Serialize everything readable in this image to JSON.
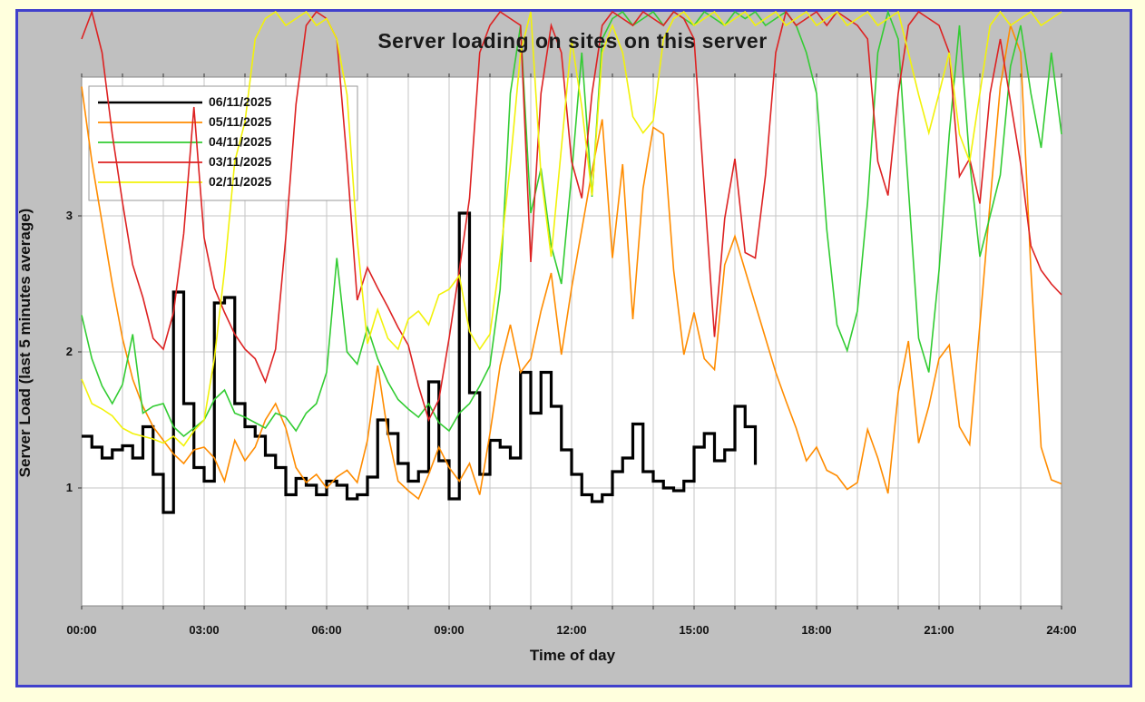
{
  "colors": {
    "page_background": "#ffffdd",
    "frame_border": "#4040cc",
    "chart_background": "#c0c0c0",
    "plot_background": "#ffffff",
    "gridline": "#c6c6c6",
    "plot_border": "#888888",
    "text": "#111111"
  },
  "chart_data": {
    "type": "line",
    "title": "Server loading on sites on this server",
    "xlabel": "Time of day",
    "ylabel": "Server Load (last 5 minutes average)",
    "xlim_hours": [
      0,
      24
    ],
    "ylim": [
      0.13,
      4.02
    ],
    "grid": "on",
    "legend_position": "top-left",
    "xticks": [
      "00:00",
      "03:00",
      "06:00",
      "09:00",
      "12:00",
      "15:00",
      "18:00",
      "21:00",
      "24:00"
    ],
    "xticks_hours": [
      0,
      3,
      6,
      9,
      12,
      15,
      18,
      21,
      24
    ],
    "yticks": [
      "1",
      "2",
      "3"
    ],
    "yticks_values": [
      1,
      2,
      3
    ],
    "note": "values above 4.02 run off the top of the plot (lines are not clipped); series 06/11/2025 is the current partial day ending ~16:30",
    "series": [
      {
        "name": "06/11/2025",
        "color": "#000000",
        "width": 3.2,
        "style": "step",
        "x_start": 0,
        "x_step": 0.25,
        "values": [
          1.38,
          1.3,
          1.22,
          1.28,
          1.31,
          1.22,
          1.45,
          1.1,
          0.82,
          2.44,
          1.62,
          1.15,
          1.05,
          2.36,
          2.4,
          1.62,
          1.45,
          1.38,
          1.24,
          1.15,
          0.95,
          1.07,
          1.02,
          0.95,
          1.05,
          1.02,
          0.92,
          0.95,
          1.08,
          1.5,
          1.4,
          1.18,
          1.05,
          1.12,
          1.78,
          1.2,
          0.92,
          3.02,
          1.7,
          1.1,
          1.35,
          1.3,
          1.22,
          1.85,
          1.55,
          1.85,
          1.6,
          1.28,
          1.1,
          0.95,
          0.9,
          0.95,
          1.12,
          1.22,
          1.47,
          1.12,
          1.05,
          1.0,
          0.98,
          1.05,
          1.3,
          1.4,
          1.2,
          1.28,
          1.6,
          1.45,
          1.17
        ]
      },
      {
        "name": "05/11/2025",
        "color": "#ff8c00",
        "width": 1.6,
        "style": "line",
        "x_start": 0,
        "x_step": 0.25,
        "values": [
          3.95,
          3.4,
          2.95,
          2.5,
          2.1,
          1.8,
          1.6,
          1.45,
          1.35,
          1.25,
          1.18,
          1.28,
          1.3,
          1.22,
          1.05,
          1.35,
          1.2,
          1.3,
          1.5,
          1.62,
          1.44,
          1.15,
          1.04,
          1.1,
          1.0,
          1.08,
          1.13,
          1.04,
          1.35,
          1.9,
          1.4,
          1.05,
          0.98,
          0.92,
          1.1,
          1.3,
          1.15,
          1.05,
          1.18,
          0.95,
          1.4,
          1.9,
          2.2,
          1.85,
          1.95,
          2.3,
          2.58,
          1.98,
          2.47,
          2.9,
          3.33,
          3.71,
          2.69,
          3.38,
          2.24,
          3.2,
          3.65,
          3.6,
          2.6,
          1.98,
          2.29,
          1.95,
          1.87,
          2.64,
          2.85,
          2.6,
          2.35,
          2.1,
          1.85,
          1.64,
          1.44,
          1.2,
          1.3,
          1.13,
          1.09,
          0.99,
          1.04,
          1.43,
          1.22,
          0.96,
          1.7,
          2.08,
          1.33,
          1.6,
          1.95,
          2.05,
          1.45,
          1.32,
          2.2,
          3.1,
          3.95,
          4.4,
          4.2,
          2.6,
          1.3,
          1.06,
          1.03
        ]
      },
      {
        "name": "04/11/2025",
        "color": "#33cc33",
        "width": 1.6,
        "style": "line",
        "x_start": 0,
        "x_step": 0.25,
        "values": [
          2.27,
          1.95,
          1.75,
          1.62,
          1.76,
          2.13,
          1.55,
          1.6,
          1.62,
          1.45,
          1.38,
          1.44,
          1.5,
          1.65,
          1.72,
          1.55,
          1.52,
          1.48,
          1.44,
          1.55,
          1.52,
          1.42,
          1.55,
          1.62,
          1.85,
          2.69,
          2.0,
          1.91,
          2.18,
          1.95,
          1.78,
          1.65,
          1.58,
          1.52,
          1.62,
          1.48,
          1.42,
          1.55,
          1.62,
          1.75,
          1.9,
          2.46,
          3.9,
          4.4,
          3.02,
          3.35,
          2.78,
          2.5,
          3.3,
          4.2,
          3.14,
          4.3,
          4.45,
          4.5,
          4.4,
          4.45,
          4.5,
          4.4,
          4.5,
          4.45,
          4.4,
          4.5,
          4.45,
          4.4,
          4.5,
          4.45,
          4.5,
          4.4,
          4.45,
          4.5,
          4.4,
          4.2,
          3.9,
          2.9,
          2.2,
          2.01,
          2.3,
          3.1,
          4.2,
          4.5,
          4.3,
          3.2,
          2.1,
          1.85,
          2.6,
          3.6,
          4.4,
          3.4,
          2.7,
          3.0,
          3.3,
          4.1,
          4.4,
          3.9,
          3.5,
          4.2,
          3.6
        ]
      },
      {
        "name": "03/11/2025",
        "color": "#dd2222",
        "width": 1.6,
        "style": "line",
        "x_start": 0,
        "x_step": 0.25,
        "values": [
          4.3,
          4.5,
          4.2,
          3.6,
          3.1,
          2.64,
          2.4,
          2.1,
          2.02,
          2.29,
          2.87,
          3.8,
          2.84,
          2.47,
          2.29,
          2.13,
          2.02,
          1.95,
          1.78,
          2.02,
          2.84,
          3.82,
          4.4,
          4.5,
          4.45,
          4.3,
          3.4,
          2.38,
          2.62,
          2.47,
          2.33,
          2.18,
          2.05,
          1.75,
          1.5,
          1.65,
          2.1,
          2.6,
          3.13,
          4.2,
          4.4,
          4.5,
          4.45,
          4.4,
          2.66,
          3.9,
          4.4,
          4.2,
          3.4,
          3.13,
          3.9,
          4.4,
          4.5,
          4.45,
          4.4,
          4.5,
          4.45,
          4.4,
          4.5,
          4.45,
          4.3,
          3.2,
          2.11,
          2.98,
          3.42,
          2.73,
          2.69,
          3.3,
          4.2,
          4.5,
          4.4,
          4.45,
          4.5,
          4.4,
          4.5,
          4.45,
          4.4,
          4.3,
          3.4,
          3.15,
          3.9,
          4.4,
          4.5,
          4.45,
          4.4,
          4.2,
          3.29,
          3.42,
          3.09,
          3.9,
          4.3,
          3.84,
          3.38,
          2.78,
          2.6,
          2.5,
          2.42
        ]
      },
      {
        "name": "02/11/2025",
        "color": "#f2f20a",
        "width": 1.6,
        "style": "line",
        "x_start": 0,
        "x_step": 0.25,
        "values": [
          1.8,
          1.62,
          1.58,
          1.53,
          1.44,
          1.4,
          1.38,
          1.36,
          1.33,
          1.38,
          1.31,
          1.42,
          1.5,
          1.95,
          2.6,
          3.4,
          3.69,
          4.3,
          4.45,
          4.5,
          4.4,
          4.45,
          4.5,
          4.4,
          4.45,
          4.3,
          3.89,
          2.82,
          2.06,
          2.31,
          2.1,
          2.02,
          2.24,
          2.3,
          2.2,
          2.42,
          2.46,
          2.56,
          2.15,
          2.02,
          2.13,
          2.69,
          3.38,
          4.2,
          4.5,
          3.3,
          2.7,
          3.5,
          4.3,
          3.8,
          3.15,
          4.2,
          4.4,
          4.2,
          3.73,
          3.61,
          3.7,
          4.3,
          4.45,
          4.5,
          4.4,
          4.45,
          4.5,
          4.4,
          4.45,
          4.5,
          4.4,
          4.45,
          4.5,
          4.4,
          4.45,
          4.5,
          4.4,
          4.45,
          4.5,
          4.4,
          4.45,
          4.5,
          4.4,
          4.45,
          4.5,
          4.2,
          3.89,
          3.61,
          3.9,
          4.2,
          3.6,
          3.4,
          3.9,
          4.4,
          4.5,
          4.4,
          4.45,
          4.5,
          4.4,
          4.45,
          4.5
        ]
      }
    ]
  }
}
